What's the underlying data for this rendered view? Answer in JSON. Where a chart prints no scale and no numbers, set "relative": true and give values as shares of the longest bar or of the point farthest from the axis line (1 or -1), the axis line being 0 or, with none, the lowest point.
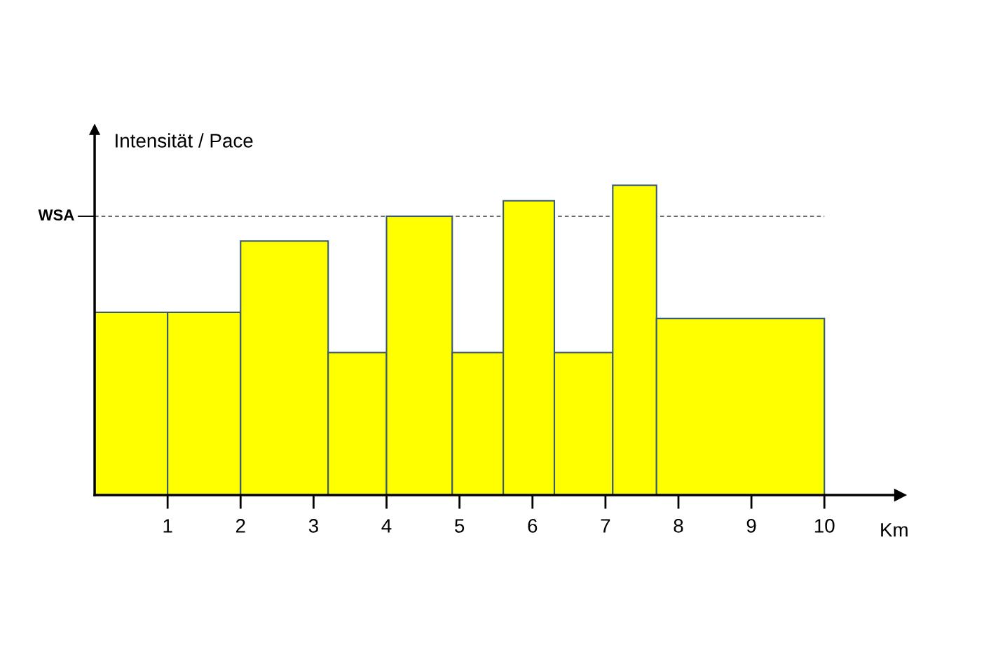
{
  "chart_data": {
    "type": "bar",
    "relative": true,
    "x": [
      0.5,
      1.5,
      2.6,
      3.6,
      4.45,
      5.25,
      5.95,
      6.7,
      7.4,
      8.85
    ],
    "xlabel": "Km",
    "ylabel": "Intensität / Pace",
    "values": [
      0.59,
      0.59,
      0.82,
      0.46,
      0.9,
      0.46,
      0.95,
      0.46,
      1.0,
      0.57
    ],
    "color": "#ffff00",
    "xlim": [
      0,
      11
    ],
    "xticks": [
      1,
      2,
      3,
      4,
      5,
      6,
      7,
      8,
      9,
      10
    ],
    "ref_lines": [
      {
        "axis": "y",
        "value": 0.9,
        "label": "WSA",
        "color": "#000000",
        "line_style": "dashed"
      }
    ],
    "tick_labels": "x",
    "grid": false
  }
}
